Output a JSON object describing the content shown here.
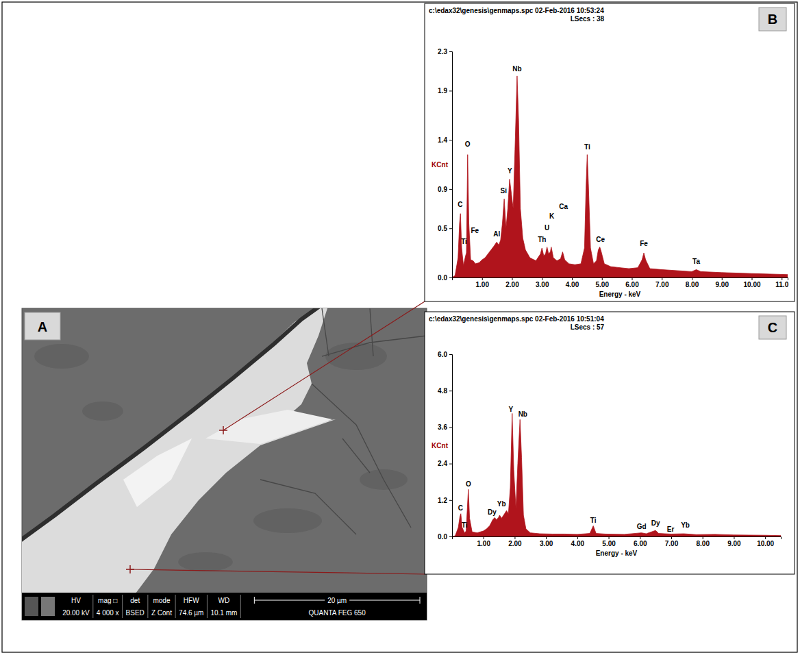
{
  "chart_data": [
    {
      "type": "area",
      "panel_label": "B",
      "title": "c:\\edax32\\genesis\\genmaps.spc 02-Feb-2016 10:53:24",
      "subtitle": "LSecs : 38",
      "x_label": "Energy - keV",
      "y_label": "KCnt",
      "color": "#b0141c",
      "x": [
        0.0,
        0.1,
        0.2,
        0.25,
        0.28,
        0.32,
        0.38,
        0.45,
        0.48,
        0.52,
        0.56,
        0.62,
        0.7,
        0.78,
        0.9,
        1.0,
        1.1,
        1.2,
        1.3,
        1.4,
        1.49,
        1.56,
        1.62,
        1.68,
        1.74,
        1.8,
        1.86,
        1.92,
        1.98,
        2.04,
        2.1,
        2.17,
        2.22,
        2.28,
        2.36,
        2.45,
        2.6,
        2.8,
        2.95,
        3.0,
        3.06,
        3.12,
        3.17,
        3.22,
        3.28,
        3.31,
        3.38,
        3.5,
        3.62,
        3.69,
        3.76,
        3.9,
        4.1,
        4.3,
        4.42,
        4.47,
        4.51,
        4.55,
        4.62,
        4.72,
        4.82,
        4.88,
        4.93,
        4.98,
        5.08,
        5.3,
        5.6,
        5.9,
        6.2,
        6.34,
        6.4,
        6.46,
        6.6,
        7.0,
        7.5,
        8.0,
        8.15,
        8.3,
        9.0,
        10.0,
        11.2
      ],
      "values": [
        0,
        0.02,
        0.2,
        0.55,
        0.65,
        0.3,
        0.12,
        0.22,
        0.25,
        1.25,
        0.55,
        0.18,
        0.17,
        0.14,
        0.15,
        0.18,
        0.2,
        0.24,
        0.28,
        0.32,
        0.36,
        0.33,
        0.38,
        0.55,
        0.8,
        0.5,
        0.7,
        1.0,
        0.85,
        0.7,
        1.3,
        2.05,
        1.6,
        0.7,
        0.4,
        0.28,
        0.2,
        0.17,
        0.24,
        0.3,
        0.22,
        0.24,
        0.31,
        0.24,
        0.26,
        0.31,
        0.2,
        0.17,
        0.19,
        0.26,
        0.18,
        0.14,
        0.13,
        0.14,
        0.3,
        0.9,
        1.25,
        0.95,
        0.3,
        0.14,
        0.17,
        0.28,
        0.31,
        0.26,
        0.14,
        0.11,
        0.1,
        0.09,
        0.1,
        0.18,
        0.25,
        0.18,
        0.09,
        0.08,
        0.07,
        0.06,
        0.08,
        0.06,
        0.05,
        0.04,
        0.03
      ],
      "xlim": [
        0,
        11.2
      ],
      "ylim": [
        0,
        2.3
      ],
      "xticks": [
        {
          "value": 1,
          "label": "1.00"
        },
        {
          "value": 2,
          "label": "2.00"
        },
        {
          "value": 3,
          "label": "3.00"
        },
        {
          "value": 4,
          "label": "4.00"
        },
        {
          "value": 5,
          "label": "5.00"
        },
        {
          "value": 6,
          "label": "6.00"
        },
        {
          "value": 7,
          "label": "7.00"
        },
        {
          "value": 8,
          "label": "8.00"
        },
        {
          "value": 9,
          "label": "9.00"
        },
        {
          "value": 10,
          "label": "10.00"
        },
        {
          "value": 11,
          "label": "11.0"
        }
      ],
      "yticks": [
        {
          "value": 0,
          "label": "0.0"
        },
        0.5,
        0.9,
        1.4,
        1.9,
        2.3
      ],
      "annotations": [
        {
          "text": "C",
          "x": 0.27,
          "y": 0.72
        },
        {
          "text": "O",
          "x": 0.52,
          "y": 1.33
        },
        {
          "text": "Ti",
          "x": 0.4,
          "y": 0.34
        },
        {
          "text": "Fe",
          "x": 0.76,
          "y": 0.45
        },
        {
          "text": "Al",
          "x": 1.49,
          "y": 0.42
        },
        {
          "text": "Si",
          "x": 1.72,
          "y": 0.86
        },
        {
          "text": "Y",
          "x": 1.93,
          "y": 1.06
        },
        {
          "text": "Nb",
          "x": 2.17,
          "y": 2.1
        },
        {
          "text": "Th",
          "x": 3.0,
          "y": 0.36
        },
        {
          "text": "U",
          "x": 3.17,
          "y": 0.48
        },
        {
          "text": "K",
          "x": 3.33,
          "y": 0.6
        },
        {
          "text": "Ca",
          "x": 3.72,
          "y": 0.7
        },
        {
          "text": "Ti",
          "x": 4.51,
          "y": 1.3
        },
        {
          "text": "Ce",
          "x": 4.95,
          "y": 0.36
        },
        {
          "text": "Fe",
          "x": 6.4,
          "y": 0.32
        },
        {
          "text": "Ta",
          "x": 8.15,
          "y": 0.14
        }
      ]
    },
    {
      "type": "area",
      "panel_label": "C",
      "title": "c:\\edax32\\genesis\\genmaps.spc 02-Feb-2016 10:51:04",
      "subtitle": "LSecs : 57",
      "x_label": "Energy - keV",
      "y_label": "KCnt",
      "color": "#b0141c",
      "x": [
        0.0,
        0.1,
        0.2,
        0.25,
        0.28,
        0.32,
        0.4,
        0.45,
        0.52,
        0.56,
        0.64,
        0.8,
        1.0,
        1.1,
        1.2,
        1.3,
        1.36,
        1.42,
        1.48,
        1.52,
        1.58,
        1.66,
        1.74,
        1.8,
        1.86,
        1.92,
        1.97,
        2.04,
        2.1,
        2.17,
        2.22,
        2.28,
        2.36,
        2.5,
        2.8,
        3.2,
        3.6,
        4.0,
        4.4,
        4.51,
        4.6,
        4.9,
        5.5,
        6.05,
        6.2,
        6.5,
        6.6,
        7.0,
        7.4,
        7.8,
        8.4,
        9.0,
        10.0,
        10.5
      ],
      "values": [
        0,
        0.02,
        0.3,
        0.65,
        0.75,
        0.3,
        0.12,
        0.18,
        1.55,
        0.6,
        0.15,
        0.12,
        0.18,
        0.25,
        0.35,
        0.55,
        0.62,
        0.55,
        0.62,
        0.7,
        0.6,
        0.72,
        0.85,
        0.75,
        1.6,
        4.05,
        2.2,
        0.9,
        2.4,
        3.85,
        2.6,
        0.7,
        0.25,
        0.12,
        0.09,
        0.08,
        0.08,
        0.07,
        0.1,
        0.35,
        0.1,
        0.08,
        0.07,
        0.12,
        0.09,
        0.2,
        0.1,
        0.08,
        0.09,
        0.06,
        0.07,
        0.05,
        0.04,
        0.03
      ],
      "xlim": [
        0,
        10.5
      ],
      "ylim": [
        0,
        6.0
      ],
      "xticks": [
        {
          "value": 1,
          "label": "1.00"
        },
        {
          "value": 2,
          "label": "2.00"
        },
        {
          "value": 3,
          "label": "3.00"
        },
        {
          "value": 4,
          "label": "4.00"
        },
        {
          "value": 5,
          "label": "5.00"
        },
        {
          "value": 6,
          "label": "6.00"
        },
        {
          "value": 7,
          "label": "7.00"
        },
        {
          "value": 8,
          "label": "8.00"
        },
        {
          "value": 9,
          "label": "9.00"
        },
        {
          "value": 10,
          "label": "10.00"
        }
      ],
      "yticks": [
        {
          "value": 0,
          "label": "0.0"
        },
        1.2,
        2.4,
        3.6,
        4.8,
        {
          "value": 6,
          "label": "6.0"
        }
      ],
      "annotations": [
        {
          "text": "C",
          "x": 0.27,
          "y": 0.85
        },
        {
          "text": "O",
          "x": 0.52,
          "y": 1.65
        },
        {
          "text": "Ti",
          "x": 0.4,
          "y": 0.3
        },
        {
          "text": "Dy",
          "x": 1.28,
          "y": 0.72
        },
        {
          "text": "Yb",
          "x": 1.58,
          "y": 1.0
        },
        {
          "text": "Y",
          "x": 1.88,
          "y": 4.1
        },
        {
          "text": "Nb",
          "x": 2.26,
          "y": 3.95
        },
        {
          "text": "Ti",
          "x": 4.51,
          "y": 0.45
        },
        {
          "text": "Gd",
          "x": 6.05,
          "y": 0.24
        },
        {
          "text": "Dy",
          "x": 6.5,
          "y": 0.36
        },
        {
          "text": "Er",
          "x": 6.98,
          "y": 0.16
        },
        {
          "text": "Yb",
          "x": 7.45,
          "y": 0.3
        }
      ]
    }
  ],
  "image": {
    "panel_label": "A",
    "info_bar": {
      "headers": [
        "HV",
        "mag □",
        "det",
        "mode",
        "HFW",
        "WD"
      ],
      "values": [
        "20.00 kV",
        "4 000 x",
        "BSED",
        "Z Cont",
        "74.6 µm",
        "10.1 mm"
      ],
      "scale_bar": "20 µm",
      "instrument": "QUANTA FEG 650"
    }
  }
}
